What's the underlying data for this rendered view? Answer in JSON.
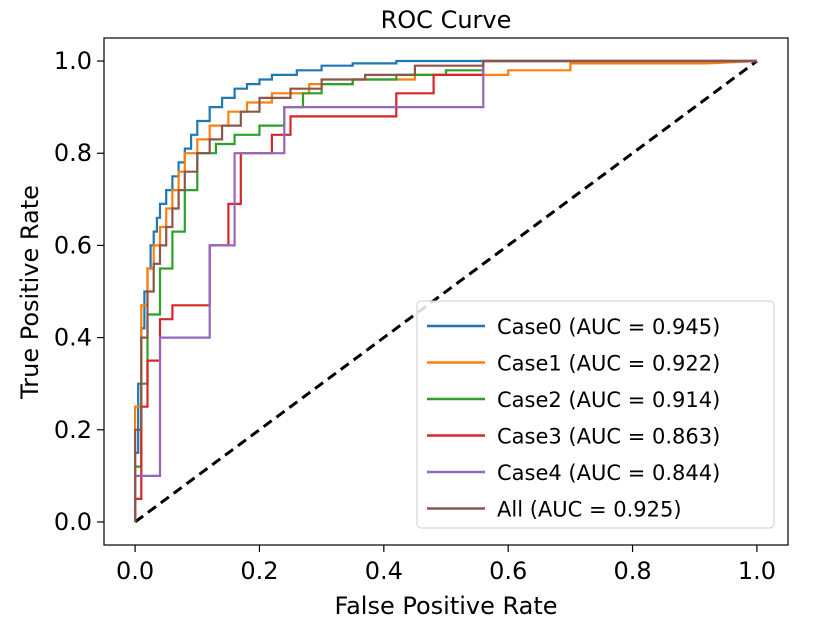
{
  "chart_data": {
    "type": "line",
    "title": "ROC Curve",
    "xlabel": "False Positive Rate",
    "ylabel": "True Positive Rate",
    "xlim": [
      -0.05,
      1.05
    ],
    "ylim": [
      -0.05,
      1.05
    ],
    "xticks": [
      0.0,
      0.2,
      0.4,
      0.6,
      0.8,
      1.0
    ],
    "yticks": [
      0.0,
      0.2,
      0.4,
      0.6,
      0.8,
      1.0
    ],
    "xtick_labels": [
      "0.0",
      "0.2",
      "0.4",
      "0.6",
      "0.8",
      "1.0"
    ],
    "ytick_labels": [
      "0.0",
      "0.2",
      "0.4",
      "0.6",
      "0.8",
      "1.0"
    ],
    "legend_position": "lower-right",
    "grid": false,
    "diagonal": {
      "x": [
        0,
        1
      ],
      "y": [
        0,
        1
      ],
      "color": "#000000",
      "style": "dashed"
    },
    "series": [
      {
        "name": "Case0 (AUC = 0.945)",
        "color": "#1f77b4",
        "x": [
          0,
          0,
          0.005,
          0.005,
          0.01,
          0.01,
          0.015,
          0.015,
          0.02,
          0.02,
          0.025,
          0.025,
          0.03,
          0.03,
          0.035,
          0.035,
          0.04,
          0.04,
          0.05,
          0.05,
          0.06,
          0.06,
          0.07,
          0.07,
          0.08,
          0.08,
          0.09,
          0.09,
          0.1,
          0.1,
          0.12,
          0.12,
          0.14,
          0.14,
          0.16,
          0.16,
          0.18,
          0.18,
          0.2,
          0.2,
          0.22,
          0.22,
          0.26,
          0.26,
          0.3,
          0.3,
          0.35,
          0.35,
          0.42,
          0.42,
          0.55,
          1
        ],
        "y": [
          0,
          0.15,
          0.15,
          0.3,
          0.3,
          0.42,
          0.42,
          0.5,
          0.5,
          0.55,
          0.55,
          0.6,
          0.6,
          0.63,
          0.63,
          0.66,
          0.66,
          0.69,
          0.69,
          0.72,
          0.72,
          0.75,
          0.75,
          0.78,
          0.78,
          0.81,
          0.81,
          0.84,
          0.84,
          0.87,
          0.87,
          0.9,
          0.9,
          0.92,
          0.92,
          0.94,
          0.94,
          0.95,
          0.95,
          0.96,
          0.96,
          0.97,
          0.97,
          0.98,
          0.98,
          0.99,
          0.99,
          0.995,
          0.995,
          1.0,
          1.0,
          1.0
        ]
      },
      {
        "name": "Case1 (AUC = 0.922)",
        "color": "#ff7f0e",
        "x": [
          0,
          0,
          0.01,
          0.01,
          0.02,
          0.02,
          0.03,
          0.03,
          0.04,
          0.04,
          0.05,
          0.05,
          0.06,
          0.06,
          0.07,
          0.07,
          0.08,
          0.08,
          0.1,
          0.1,
          0.12,
          0.12,
          0.15,
          0.15,
          0.18,
          0.18,
          0.22,
          0.22,
          0.28,
          0.28,
          0.35,
          0.35,
          0.45,
          0.45,
          0.6,
          0.6,
          0.7,
          0.7,
          0.92,
          1
        ],
        "y": [
          0,
          0.25,
          0.25,
          0.47,
          0.47,
          0.55,
          0.55,
          0.6,
          0.6,
          0.64,
          0.64,
          0.68,
          0.68,
          0.72,
          0.72,
          0.76,
          0.76,
          0.8,
          0.8,
          0.83,
          0.83,
          0.86,
          0.86,
          0.89,
          0.89,
          0.91,
          0.91,
          0.93,
          0.93,
          0.95,
          0.95,
          0.96,
          0.96,
          0.97,
          0.97,
          0.98,
          0.98,
          0.995,
          0.995,
          1.0
        ]
      },
      {
        "name": "Case2 (AUC = 0.914)",
        "color": "#2ca02c",
        "x": [
          0,
          0,
          0.01,
          0.01,
          0.02,
          0.02,
          0.04,
          0.04,
          0.06,
          0.06,
          0.08,
          0.08,
          0.1,
          0.1,
          0.13,
          0.13,
          0.16,
          0.16,
          0.2,
          0.2,
          0.24,
          0.24,
          0.27,
          0.27,
          0.3,
          0.3,
          0.35,
          0.35,
          0.42,
          0.42,
          0.5,
          0.5,
          0.56,
          0.56,
          1
        ],
        "y": [
          0,
          0.12,
          0.12,
          0.3,
          0.3,
          0.45,
          0.45,
          0.55,
          0.55,
          0.63,
          0.63,
          0.72,
          0.72,
          0.8,
          0.8,
          0.82,
          0.82,
          0.84,
          0.84,
          0.86,
          0.86,
          0.9,
          0.9,
          0.93,
          0.93,
          0.95,
          0.95,
          0.96,
          0.96,
          0.97,
          0.97,
          0.98,
          0.98,
          1.0,
          1.0
        ]
      },
      {
        "name": "Case3 (AUC = 0.863)",
        "color": "#d62728",
        "x": [
          0,
          0,
          0.01,
          0.01,
          0.02,
          0.02,
          0.04,
          0.04,
          0.06,
          0.06,
          0.12,
          0.12,
          0.15,
          0.15,
          0.17,
          0.17,
          0.22,
          0.22,
          0.25,
          0.25,
          0.32,
          0.32,
          0.42,
          0.42,
          0.48,
          0.48,
          0.56,
          0.56,
          1
        ],
        "y": [
          0,
          0.05,
          0.05,
          0.25,
          0.25,
          0.35,
          0.35,
          0.44,
          0.44,
          0.47,
          0.47,
          0.6,
          0.6,
          0.69,
          0.69,
          0.8,
          0.8,
          0.84,
          0.84,
          0.88,
          0.88,
          0.88,
          0.88,
          0.93,
          0.93,
          0.97,
          0.97,
          1.0,
          1.0
        ]
      },
      {
        "name": "Case4 (AUC = 0.844)",
        "color": "#9467bd",
        "x": [
          0,
          0,
          0.04,
          0.04,
          0.12,
          0.12,
          0.16,
          0.16,
          0.24,
          0.24,
          0.32,
          0.32,
          0.56,
          0.56,
          1
        ],
        "y": [
          0,
          0.1,
          0.1,
          0.4,
          0.4,
          0.6,
          0.6,
          0.8,
          0.8,
          0.9,
          0.9,
          0.9,
          0.9,
          1.0,
          1.0
        ]
      },
      {
        "name": "All (AUC = 0.925)",
        "color": "#8c564b",
        "x": [
          0,
          0,
          0.01,
          0.01,
          0.02,
          0.02,
          0.03,
          0.03,
          0.04,
          0.04,
          0.05,
          0.05,
          0.06,
          0.06,
          0.07,
          0.07,
          0.08,
          0.08,
          0.1,
          0.1,
          0.12,
          0.12,
          0.14,
          0.14,
          0.17,
          0.17,
          0.2,
          0.2,
          0.25,
          0.25,
          0.3,
          0.3,
          0.37,
          0.37,
          0.45,
          0.45,
          0.56,
          0.56,
          1
        ],
        "y": [
          0,
          0.2,
          0.2,
          0.4,
          0.4,
          0.5,
          0.5,
          0.56,
          0.56,
          0.6,
          0.6,
          0.64,
          0.64,
          0.68,
          0.68,
          0.72,
          0.72,
          0.76,
          0.76,
          0.8,
          0.8,
          0.83,
          0.83,
          0.86,
          0.86,
          0.89,
          0.89,
          0.92,
          0.92,
          0.94,
          0.94,
          0.96,
          0.96,
          0.97,
          0.97,
          0.99,
          0.99,
          1.0,
          1.0
        ]
      }
    ]
  }
}
